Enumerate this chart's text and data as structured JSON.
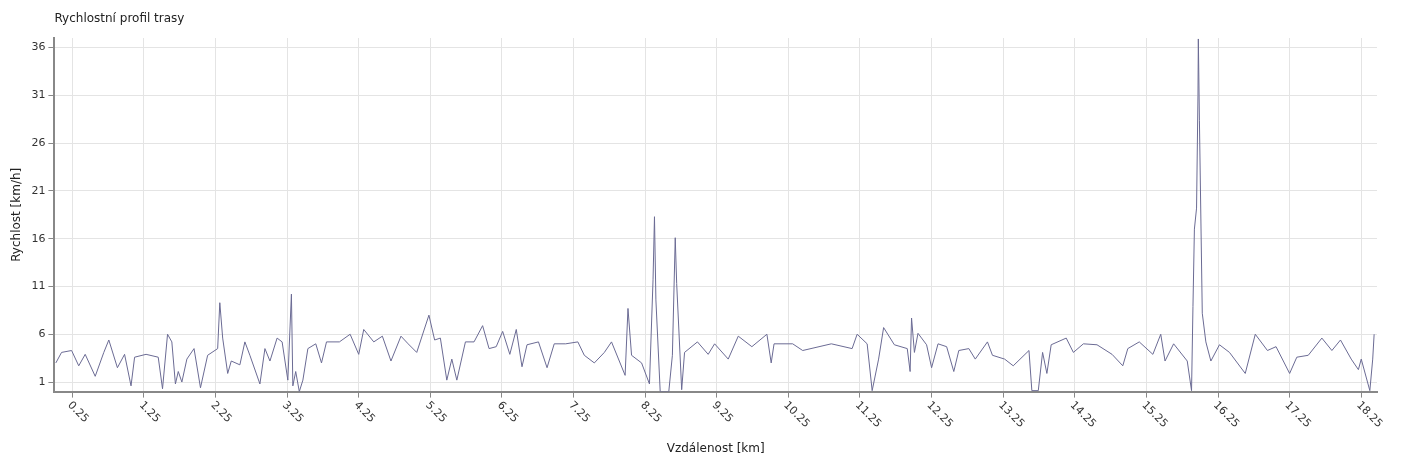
{
  "chart_data": {
    "type": "line",
    "title": "Rychlostní profil trasy",
    "xlabel": "Vzdálenost [km]",
    "ylabel": "Rychlost [km/h]",
    "xlim": [
      0,
      18.47
    ],
    "ylim": [
      0,
      37
    ],
    "xticks": [
      0.25,
      1.25,
      2.25,
      3.25,
      4.25,
      5.25,
      6.25,
      7.25,
      8.25,
      9.25,
      10.25,
      11.25,
      12.25,
      13.25,
      14.25,
      15.25,
      16.25,
      17.25,
      18.25
    ],
    "yticks": [
      1,
      6,
      11,
      16,
      21,
      26,
      31,
      36
    ],
    "grid": true,
    "legend": false,
    "marker": "none",
    "line_style": "solid",
    "series": [
      {
        "color": "#6b6b94",
        "x": [
          0.02,
          0.1,
          0.24,
          0.34,
          0.43,
          0.57,
          0.69,
          0.76,
          0.88,
          0.98,
          1.07,
          1.12,
          1.28,
          1.45,
          1.51,
          1.58,
          1.64,
          1.69,
          1.73,
          1.78,
          1.85,
          1.95,
          2.04,
          2.14,
          2.28,
          2.31,
          2.35,
          2.42,
          2.47,
          2.59,
          2.66,
          2.73,
          2.87,
          2.94,
          3.01,
          3.11,
          3.18,
          3.26,
          3.31,
          3.33,
          3.37,
          3.42,
          3.47,
          3.54,
          3.65,
          3.73,
          3.8,
          3.98,
          4.13,
          4.25,
          4.32,
          4.46,
          4.58,
          4.7,
          4.84,
          4.94,
          5.06,
          5.23,
          5.31,
          5.39,
          5.48,
          5.55,
          5.62,
          5.74,
          5.86,
          5.98,
          6.07,
          6.17,
          6.26,
          6.36,
          6.45,
          6.53,
          6.6,
          6.76,
          6.88,
          6.98,
          7.14,
          7.31,
          7.4,
          7.54,
          7.68,
          7.78,
          7.97,
          8.01,
          8.06,
          8.2,
          8.31,
          8.36,
          8.38,
          8.4,
          8.46,
          8.58,
          8.63,
          8.67,
          8.69,
          8.76,
          8.8,
          8.98,
          9.13,
          9.22,
          9.41,
          9.55,
          9.74,
          9.95,
          10.01,
          10.05,
          10.31,
          10.45,
          10.85,
          11.14,
          11.21,
          11.35,
          11.42,
          11.51,
          11.58,
          11.73,
          11.91,
          11.95,
          11.97,
          12.01,
          12.06,
          12.18,
          12.25,
          12.34,
          12.46,
          12.56,
          12.63,
          12.77,
          12.86,
          13.03,
          13.1,
          13.27,
          13.39,
          13.61,
          13.65,
          13.74,
          13.8,
          13.86,
          13.92,
          14.13,
          14.23,
          14.37,
          14.56,
          14.77,
          14.92,
          14.99,
          15.15,
          15.34,
          15.45,
          15.51,
          15.63,
          15.82,
          15.88,
          15.9,
          15.92,
          15.95,
          15.97,
          15.975,
          15.99,
          16.03,
          16.08,
          16.15,
          16.27,
          16.41,
          16.63,
          16.77,
          16.94,
          17.06,
          17.25,
          17.35,
          17.51,
          17.7,
          17.84,
          17.96,
          18.11,
          18.21,
          18.25,
          18.37,
          18.41,
          18.43
        ],
        "values": [
          3.0,
          4.1,
          4.3,
          2.7,
          3.9,
          1.6,
          4.1,
          5.4,
          2.5,
          3.9,
          0.6,
          3.6,
          3.9,
          3.6,
          0.3,
          6.0,
          5.2,
          0.8,
          2.1,
          1.0,
          3.4,
          4.5,
          0.4,
          3.8,
          4.5,
          9.3,
          5.6,
          1.9,
          3.2,
          2.8,
          5.2,
          3.8,
          0.8,
          4.5,
          3.2,
          5.6,
          5.2,
          1.2,
          10.2,
          0.6,
          2.1,
          0.0,
          1.2,
          4.5,
          5.0,
          3.0,
          5.2,
          5.2,
          6.0,
          3.9,
          6.5,
          5.2,
          5.8,
          3.2,
          5.8,
          5.0,
          4.1,
          8.0,
          5.4,
          5.6,
          1.2,
          3.4,
          1.2,
          5.2,
          5.2,
          6.9,
          4.5,
          4.7,
          6.3,
          3.9,
          6.5,
          2.6,
          4.9,
          5.2,
          2.5,
          5.0,
          5.0,
          5.2,
          3.8,
          3.0,
          4.1,
          5.2,
          1.7,
          8.7,
          3.8,
          3.0,
          0.8,
          11.7,
          18.3,
          9.6,
          0.0,
          0.0,
          3.8,
          16.1,
          11.3,
          0.2,
          4.1,
          5.2,
          3.9,
          5.0,
          3.4,
          5.8,
          4.7,
          6.0,
          3.0,
          5.0,
          5.0,
          4.3,
          5.0,
          4.5,
          6.0,
          5.0,
          0.1,
          3.4,
          6.7,
          4.9,
          4.5,
          2.1,
          7.7,
          4.1,
          6.1,
          4.9,
          2.5,
          5.0,
          4.7,
          2.1,
          4.3,
          4.5,
          3.4,
          5.2,
          3.8,
          3.4,
          2.7,
          4.3,
          0.1,
          0.1,
          4.1,
          1.9,
          4.9,
          5.6,
          4.1,
          5.0,
          4.9,
          3.9,
          2.7,
          4.5,
          5.2,
          3.9,
          6.0,
          3.2,
          5.0,
          3.2,
          0.1,
          8.9,
          17.0,
          19.2,
          31.0,
          36.9,
          28.4,
          8.2,
          5.2,
          3.2,
          4.9,
          4.1,
          1.9,
          6.0,
          4.3,
          4.7,
          1.9,
          3.6,
          3.8,
          5.6,
          4.3,
          5.4,
          3.4,
          2.3,
          3.4,
          0.1,
          3.4,
          6.0
        ]
      }
    ]
  }
}
